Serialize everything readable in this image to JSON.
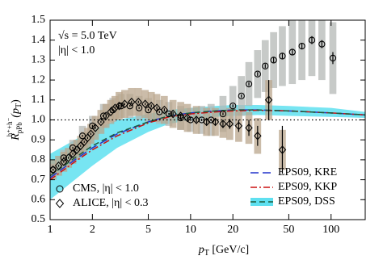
{
  "chart_data": {
    "type": "scatter",
    "annotations": [
      "√s = 5.0 TeV",
      "|η| < 1.0"
    ],
    "xlabel": [
      "p",
      "T",
      " [GeV/c]"
    ],
    "ylabel": [
      "R",
      "pPb",
      "h⁺+h⁻",
      "(p",
      "T",
      ")"
    ],
    "log_x": true,
    "xlim": [
      1,
      175
    ],
    "xticks": [
      1,
      2,
      5,
      10,
      20,
      50,
      100
    ],
    "ylim": [
      0.5,
      1.5
    ],
    "yticks": [
      0.5,
      0.6,
      0.7,
      0.8,
      0.9,
      {
        "value": 1,
        "label": "1.0"
      },
      1.1,
      1.2,
      1.3,
      1.4,
      1.5
    ],
    "reference_line": 1,
    "series": [
      {
        "name": "CMS, |η| < 1.0",
        "marker": "circle",
        "color": "#000000",
        "sys_color": "#b4b8b6",
        "x": [
          1.05,
          1.25,
          1.45,
          1.7,
          2.0,
          2.4,
          2.8,
          3.2,
          3.7,
          4.3,
          5.0,
          6.0,
          7.0,
          8.5,
          10,
          12,
          14,
          17,
          20,
          23,
          26,
          30,
          34,
          39,
          45,
          53,
          62,
          73,
          86,
          103
        ],
        "values": [
          0.75,
          0.81,
          0.86,
          0.92,
          0.97,
          1.02,
          1.05,
          1.07,
          1.07,
          1.06,
          1.05,
          1.04,
          1.03,
          1.01,
          1.0,
          1.0,
          1.0,
          1.03,
          1.07,
          1.12,
          1.18,
          1.23,
          1.27,
          1.3,
          1.32,
          1.34,
          1.37,
          1.4,
          1.38,
          1.31
        ],
        "errors": [
          0.005,
          0.005,
          0.005,
          0.005,
          0.005,
          0.005,
          0.005,
          0.005,
          0.005,
          0.005,
          0.005,
          0.005,
          0.005,
          0.005,
          0.005,
          0.006,
          0.006,
          0.007,
          0.008,
          0.008,
          0.009,
          0.01,
          0.01,
          0.012,
          0.012,
          0.014,
          0.016,
          0.02,
          0.02,
          0.03
        ],
        "sys": [
          0.03,
          0.04,
          0.04,
          0.05,
          0.05,
          0.06,
          0.06,
          0.06,
          0.06,
          0.06,
          0.06,
          0.06,
          0.06,
          0.06,
          0.06,
          0.07,
          0.08,
          0.09,
          0.1,
          0.1,
          0.11,
          0.12,
          0.13,
          0.14,
          0.15,
          0.16,
          0.17,
          0.18,
          0.18,
          0.18
        ]
      },
      {
        "name": "ALICE, |η| < 0.3",
        "marker": "diamond",
        "color": "#000000",
        "sys_color": "#b9a58c",
        "x": [
          1.05,
          1.15,
          1.25,
          1.35,
          1.45,
          1.55,
          1.65,
          1.75,
          1.85,
          1.95,
          2.1,
          2.3,
          2.5,
          2.7,
          2.9,
          3.1,
          3.4,
          3.8,
          4.25,
          4.75,
          5.25,
          5.75,
          6.5,
          7.5,
          8.5,
          9.5,
          11,
          13,
          15,
          17,
          19,
          22,
          26,
          30,
          36,
          45
        ],
        "values": [
          0.75,
          0.77,
          0.79,
          0.81,
          0.83,
          0.85,
          0.87,
          0.89,
          0.91,
          0.93,
          0.96,
          0.99,
          1.02,
          1.04,
          1.06,
          1.07,
          1.08,
          1.09,
          1.09,
          1.08,
          1.07,
          1.06,
          1.05,
          1.03,
          1.02,
          1.01,
          1.0,
          0.99,
          0.99,
          0.98,
          0.98,
          0.97,
          0.96,
          0.92,
          1.1,
          0.85
        ],
        "errors": [
          0.005,
          0.005,
          0.005,
          0.005,
          0.005,
          0.005,
          0.005,
          0.005,
          0.005,
          0.005,
          0.005,
          0.005,
          0.005,
          0.005,
          0.005,
          0.005,
          0.005,
          0.006,
          0.006,
          0.006,
          0.007,
          0.007,
          0.008,
          0.009,
          0.01,
          0.01,
          0.012,
          0.014,
          0.016,
          0.02,
          0.025,
          0.03,
          0.04,
          0.05,
          0.1,
          0.12
        ],
        "sys": [
          0.05,
          0.05,
          0.05,
          0.05,
          0.05,
          0.05,
          0.05,
          0.05,
          0.05,
          0.05,
          0.06,
          0.06,
          0.06,
          0.06,
          0.06,
          0.07,
          0.07,
          0.07,
          0.07,
          0.07,
          0.07,
          0.07,
          0.07,
          0.07,
          0.07,
          0.07,
          0.07,
          0.07,
          0.07,
          0.07,
          0.08,
          0.08,
          0.08,
          0.09,
          0.1,
          0.1
        ]
      },
      {
        "name": "EPS09, KRE",
        "marker": "line",
        "dash": "10 5",
        "color": "#2233cc",
        "x": [
          1,
          1.5,
          2,
          3,
          5,
          7,
          10,
          15,
          20,
          30,
          50,
          100,
          175
        ],
        "values": [
          0.71,
          0.8,
          0.86,
          0.93,
          0.99,
          1.02,
          1.035,
          1.045,
          1.05,
          1.05,
          1.045,
          1.035,
          1.025
        ]
      },
      {
        "name": "EPS09, KKP",
        "marker": "line",
        "dash": "8 3 2 3",
        "color": "#cc1111",
        "x": [
          1,
          1.5,
          2,
          3,
          5,
          7,
          10,
          15,
          20,
          30,
          50,
          100,
          175
        ],
        "values": [
          0.7,
          0.79,
          0.85,
          0.92,
          0.985,
          1.015,
          1.03,
          1.04,
          1.045,
          1.048,
          1.045,
          1.035,
          1.025
        ]
      },
      {
        "name": "EPS09, DSS",
        "marker": "line",
        "dash": "7 4",
        "color": "#1d5a3a",
        "band_color": "#5fe0f0",
        "x": [
          1,
          1.5,
          2,
          3,
          5,
          7,
          10,
          15,
          20,
          30,
          50,
          100,
          175
        ],
        "values": [
          0.72,
          0.81,
          0.87,
          0.935,
          0.99,
          1.02,
          1.035,
          1.045,
          1.05,
          1.05,
          1.045,
          1.035,
          1.025
        ],
        "band_low": [
          0.6,
          0.7,
          0.77,
          0.86,
          0.94,
          0.98,
          1.0,
          1.015,
          1.02,
          1.025,
          1.02,
          1.015,
          1.01
        ],
        "band_high": [
          0.83,
          0.9,
          0.95,
          1.0,
          1.03,
          1.05,
          1.06,
          1.07,
          1.075,
          1.075,
          1.07,
          1.06,
          1.04
        ]
      }
    ],
    "legend_corners": [
      "lower left",
      "lower right"
    ]
  }
}
